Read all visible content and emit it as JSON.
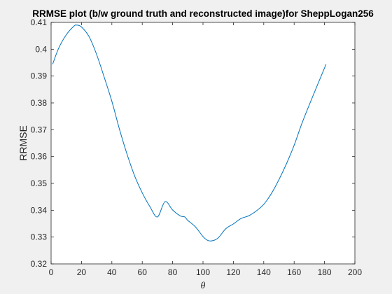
{
  "chart_data": {
    "type": "line",
    "title": "RRMSE plot (b/w ground truth and reconstructed image)for SheppLogan256",
    "xlabel": "θ",
    "ylabel": "RRMSE",
    "xlim": [
      0,
      200
    ],
    "ylim": [
      0.32,
      0.41
    ],
    "xticks": [
      0,
      20,
      40,
      60,
      80,
      100,
      120,
      140,
      160,
      180,
      200
    ],
    "yticks": [
      0.32,
      0.33,
      0.34,
      0.35,
      0.36,
      0.37,
      0.38,
      0.39,
      0.4,
      0.41
    ],
    "xtick_labels": [
      "0",
      "20",
      "40",
      "60",
      "80",
      "100",
      "120",
      "140",
      "160",
      "180",
      "200"
    ],
    "ytick_labels": [
      "0.32",
      "0.33",
      "0.34",
      "0.35",
      "0.36",
      "0.37",
      "0.38",
      "0.39",
      "0.4",
      "0.41"
    ],
    "grid": false,
    "line_color": "#0072bd",
    "series": [
      {
        "x": [
          1,
          5,
          10,
          15,
          17,
          20,
          25,
          30,
          35,
          40,
          45,
          50,
          55,
          60,
          65,
          70,
          75,
          80,
          85,
          88,
          90,
          95,
          100,
          103,
          106,
          110,
          115,
          120,
          125,
          130,
          135,
          140,
          145,
          150,
          155,
          160,
          165,
          170,
          175,
          181
        ],
        "y": [
          0.3944,
          0.4004,
          0.4054,
          0.4086,
          0.409,
          0.4083,
          0.4047,
          0.398,
          0.3895,
          0.3806,
          0.3702,
          0.3609,
          0.3528,
          0.3465,
          0.3414,
          0.3375,
          0.3432,
          0.3401,
          0.3379,
          0.3375,
          0.3362,
          0.3338,
          0.3302,
          0.3288,
          0.3286,
          0.3297,
          0.3331,
          0.3349,
          0.3369,
          0.3379,
          0.3397,
          0.3422,
          0.3462,
          0.3514,
          0.3574,
          0.3642,
          0.3722,
          0.3793,
          0.3862,
          0.3944
        ]
      }
    ]
  }
}
